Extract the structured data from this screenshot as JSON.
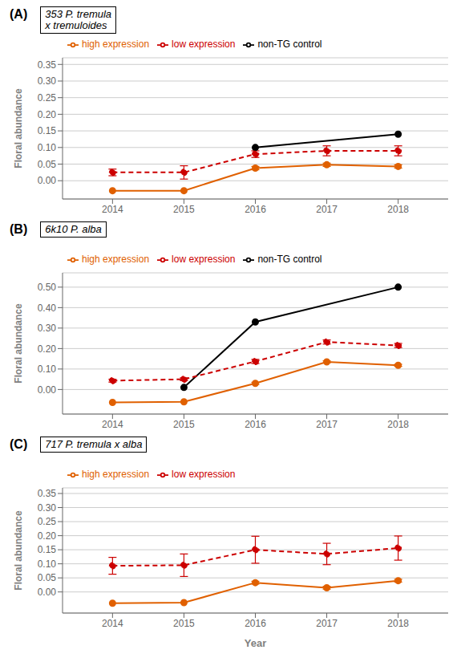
{
  "chart_data": [
    {
      "type": "line",
      "title": "353 P. tremula\nx tremuloides",
      "annotations": [
        "(A)"
      ],
      "x": [
        2014,
        2015,
        2016,
        2017,
        2018
      ],
      "xlim": [
        2013.3,
        2018.7
      ],
      "xticks": [
        2014,
        2015,
        2016,
        2017,
        2018
      ],
      "ylabel": "Floral abundance",
      "ylim": [
        -0.055,
        0.37
      ],
      "yticks": [
        {
          "value": 0,
          "label": "0.00"
        },
        0.05,
        {
          "value": 0.1,
          "label": "0.10"
        },
        0.15,
        {
          "value": 0.2,
          "label": "0.20"
        },
        0.25,
        {
          "value": 0.3,
          "label": "0.30"
        },
        0.35
      ],
      "grid": true,
      "legend": "upper left",
      "series": [
        {
          "name": "non-TG control",
          "color": "#000000",
          "marker": "circle",
          "line_style": "solid",
          "x": [
            2016,
            2018
          ],
          "values": [
            0.1,
            0.14
          ]
        },
        {
          "name": "low expression",
          "color": "#cc0000",
          "marker": "circle",
          "line_style": "dashed",
          "values": [
            0.025,
            0.025,
            0.08,
            0.09,
            0.09
          ],
          "error": [
            0.01,
            0.02,
            0.01,
            0.015,
            0.015
          ]
        },
        {
          "name": "high expression",
          "color": "#e06000",
          "marker": "circle",
          "line_style": "solid",
          "values": [
            -0.03,
            -0.03,
            0.038,
            0.048,
            0.043
          ],
          "error": [
            0.0,
            0.0,
            0.005,
            0.005,
            0.005
          ]
        }
      ]
    },
    {
      "type": "line",
      "title": "6k10 P. alba",
      "annotations": [
        "(B)"
      ],
      "x": [
        2014,
        2015,
        2016,
        2017,
        2018
      ],
      "xlim": [
        2013.3,
        2018.7
      ],
      "xticks": [
        2014,
        2015,
        2016,
        2017,
        2018
      ],
      "ylabel": "Floral abundance",
      "ylim": [
        -0.12,
        0.57
      ],
      "yticks": [
        {
          "value": 0.0,
          "label": "0.00"
        },
        {
          "value": 0.1,
          "label": "0.10"
        },
        {
          "value": 0.2,
          "label": "0.20"
        },
        {
          "value": 0.3,
          "label": "0.30"
        },
        {
          "value": 0.4,
          "label": "0.40"
        },
        {
          "value": 0.5,
          "label": "0.50"
        }
      ],
      "grid": true,
      "legend": "upper left",
      "series": [
        {
          "name": "non-TG control",
          "color": "#000000",
          "marker": "circle",
          "line_style": "solid",
          "x": [
            2015,
            2016,
            2018
          ],
          "values": [
            0.01,
            0.33,
            0.5
          ]
        },
        {
          "name": "low expression",
          "color": "#cc0000",
          "marker": "circle",
          "line_style": "dashed",
          "values": [
            0.043,
            0.05,
            0.137,
            0.232,
            0.215
          ],
          "error": [
            0.007,
            0.007,
            0.01,
            0.01,
            0.01
          ]
        },
        {
          "name": "high expression",
          "color": "#e06000",
          "marker": "circle",
          "line_style": "solid",
          "values": [
            -0.063,
            -0.06,
            0.03,
            0.135,
            0.118
          ],
          "error": [
            0.0,
            0.0,
            0.005,
            0.005,
            0.005
          ]
        }
      ]
    },
    {
      "type": "line",
      "title": "717 P. tremula x alba",
      "annotations": [
        "(C)"
      ],
      "x": [
        2014,
        2015,
        2016,
        2017,
        2018
      ],
      "xlim": [
        2013.3,
        2018.7
      ],
      "xticks": [
        2014,
        2015,
        2016,
        2017,
        2018
      ],
      "xlabel": "Year",
      "ylabel": "Floral abundance",
      "ylim": [
        -0.075,
        0.37
      ],
      "yticks": [
        {
          "value": 0,
          "label": "0.00"
        },
        0.05,
        {
          "value": 0.1,
          "label": "0.10"
        },
        0.15,
        {
          "value": 0.2,
          "label": "0.20"
        },
        0.25,
        {
          "value": 0.3,
          "label": "0.30"
        },
        0.35
      ],
      "grid": true,
      "legend": "upper left",
      "series": [
        {
          "name": "low expression",
          "color": "#cc0000",
          "marker": "circle",
          "line_style": "dashed",
          "values": [
            0.093,
            0.095,
            0.15,
            0.135,
            0.156
          ],
          "error": [
            0.03,
            0.04,
            0.048,
            0.038,
            0.043
          ]
        },
        {
          "name": "high expression",
          "color": "#e06000",
          "marker": "circle",
          "line_style": "solid",
          "values": [
            -0.04,
            -0.038,
            0.033,
            0.015,
            0.04
          ],
          "error": [
            0.0,
            0.0,
            0.005,
            0.005,
            0.005
          ]
        }
      ]
    }
  ]
}
